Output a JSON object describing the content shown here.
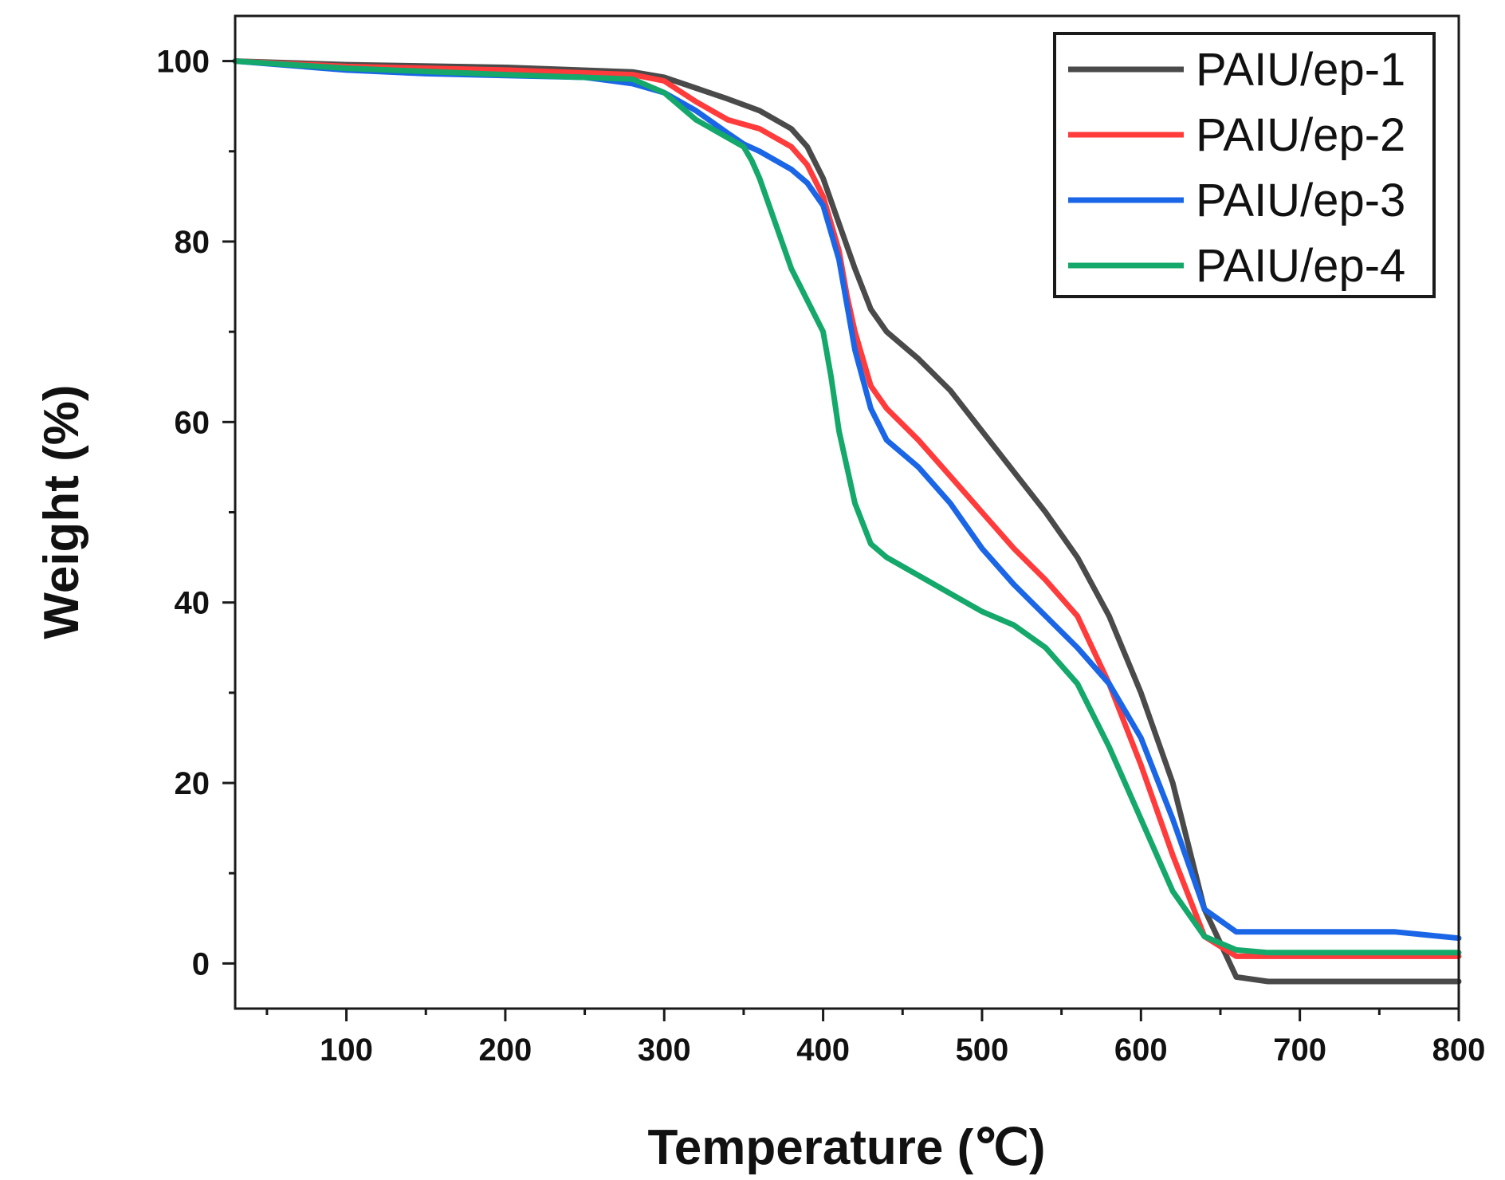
{
  "chart_data": {
    "type": "line",
    "title": "",
    "xlabel": "Temperature (℃)",
    "ylabel": "Weight (%)",
    "xlim": [
      30,
      800
    ],
    "ylim": [
      -5,
      105
    ],
    "x_ticks": [
      100,
      200,
      300,
      400,
      500,
      600,
      700,
      800
    ],
    "y_ticks": [
      0,
      20,
      40,
      60,
      80,
      100
    ],
    "grid": false,
    "legend_position": "top-right",
    "series": [
      {
        "name": "PAIU/ep-1",
        "color": "#4a4a4a",
        "x": [
          30,
          100,
          200,
          280,
          300,
          320,
          340,
          360,
          380,
          390,
          400,
          410,
          420,
          430,
          440,
          460,
          480,
          500,
          520,
          540,
          560,
          580,
          600,
          620,
          640,
          660,
          680,
          700,
          800
        ],
        "y": [
          100,
          99.6,
          99.3,
          98.8,
          98.2,
          97,
          95.8,
          94.5,
          92.5,
          90.5,
          87,
          82,
          77,
          72.5,
          70,
          67,
          63.5,
          59,
          54.5,
          50,
          45,
          38.5,
          30,
          20,
          6,
          -1.5,
          -2,
          -2,
          -2
        ]
      },
      {
        "name": "PAIU/ep-2",
        "color": "#ff3b3b",
        "x": [
          30,
          100,
          200,
          280,
          300,
          320,
          340,
          360,
          380,
          390,
          400,
          410,
          415,
          420,
          430,
          440,
          460,
          480,
          500,
          520,
          540,
          560,
          580,
          600,
          620,
          640,
          660,
          680,
          700,
          800
        ],
        "y": [
          100,
          99.4,
          99,
          98.5,
          97.8,
          95.5,
          93.5,
          92.5,
          90.5,
          88.5,
          85,
          79,
          74,
          70,
          64,
          61.5,
          58,
          54,
          50,
          46,
          42.5,
          38.5,
          31,
          22,
          12,
          3,
          0.8,
          0.8,
          0.8,
          0.8
        ]
      },
      {
        "name": "PAIU/ep-3",
        "color": "#1a66e6",
        "x": [
          30,
          100,
          150,
          200,
          250,
          280,
          300,
          320,
          340,
          350,
          360,
          380,
          390,
          400,
          410,
          415,
          420,
          430,
          440,
          460,
          480,
          500,
          520,
          540,
          560,
          580,
          600,
          620,
          640,
          660,
          680,
          700,
          760,
          800
        ],
        "y": [
          100,
          99,
          98.6,
          98.4,
          98.2,
          97.5,
          96.5,
          94.5,
          92,
          90.8,
          90,
          88,
          86.5,
          84,
          78,
          73,
          68,
          61.5,
          58,
          55,
          51,
          46,
          42,
          38.5,
          35,
          31,
          25,
          16,
          6,
          3.5,
          3.5,
          3.5,
          3.5,
          2.8
        ]
      },
      {
        "name": "PAIU/ep-4",
        "color": "#14a86a",
        "x": [
          30,
          100,
          200,
          280,
          300,
          320,
          340,
          350,
          355,
          360,
          380,
          400,
          405,
          410,
          420,
          430,
          440,
          460,
          480,
          500,
          520,
          540,
          560,
          580,
          600,
          620,
          640,
          660,
          680,
          800
        ],
        "y": [
          100,
          99.2,
          98.5,
          98,
          96.5,
          93.5,
          91.5,
          90.5,
          89,
          87,
          77,
          70,
          65,
          59,
          51,
          46.5,
          45,
          43,
          41,
          39,
          37.5,
          35,
          31,
          24,
          16,
          8,
          3,
          1.5,
          1.2,
          1.2
        ]
      }
    ]
  }
}
